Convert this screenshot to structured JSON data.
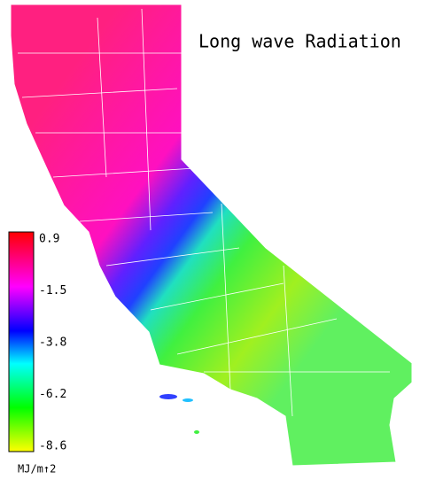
{
  "title": "Long wave Radiation",
  "legend": {
    "ticks": [
      "0.9",
      "-1.5",
      "-3.8",
      "-6.2",
      "-8.6"
    ],
    "unit": "MJ/m↑2"
  }
}
